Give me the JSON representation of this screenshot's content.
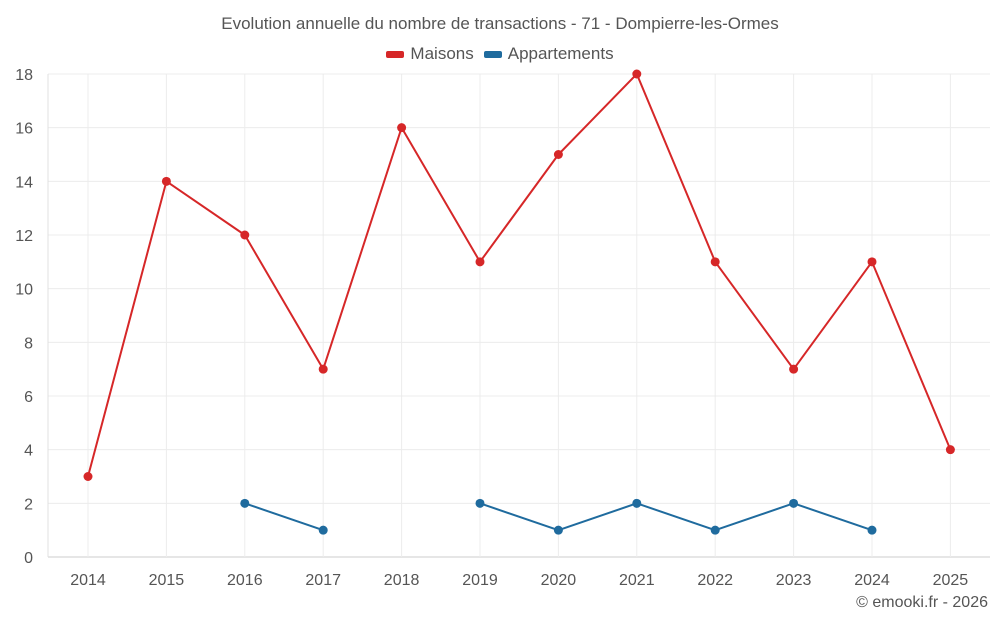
{
  "chart_data": {
    "type": "line",
    "title": "Evolution annuelle du nombre de transactions - 71 - Dompierre-les-Ormes",
    "x": [
      "2014",
      "2015",
      "2016",
      "2017",
      "2018",
      "2019",
      "2020",
      "2021",
      "2022",
      "2023",
      "2024",
      "2025"
    ],
    "ylim": [
      0,
      18
    ],
    "yticks": [
      0,
      2,
      4,
      6,
      8,
      10,
      12,
      14,
      16,
      18
    ],
    "grid": true,
    "legend_position": "top-center",
    "series": [
      {
        "name": "Maisons",
        "color": "#d62728",
        "values": [
          3,
          14,
          12,
          7,
          16,
          11,
          15,
          18,
          11,
          7,
          11,
          4
        ]
      },
      {
        "name": "Appartements",
        "color": "#1f6b9e",
        "values": [
          null,
          null,
          2,
          1,
          null,
          2,
          1,
          2,
          1,
          2,
          1,
          null
        ]
      }
    ]
  },
  "credit": "© emooki.fr - 2026"
}
